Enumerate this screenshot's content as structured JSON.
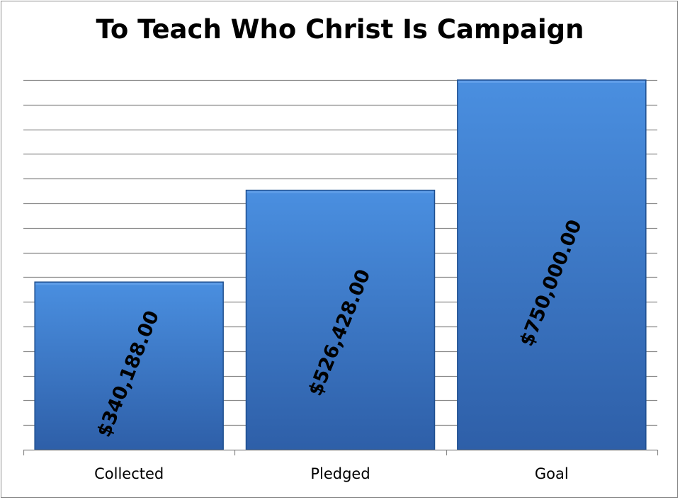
{
  "chart_data": {
    "type": "bar",
    "title": "To Teach Who Christ Is Campaign",
    "categories": [
      "Collected",
      "Pledged",
      "Goal"
    ],
    "values": [
      340188,
      526428,
      750000
    ],
    "data_labels": [
      "$340,188.00",
      "$526,428.00",
      "$750,000.00"
    ],
    "xlabel": "",
    "ylabel": "",
    "ylim": [
      0,
      750000
    ],
    "grid": true,
    "legend": "none",
    "colors": {
      "bar_top": "#4a8fe0",
      "bar_bottom": "#2e5fa8",
      "bar_edge": "#1f4f8f",
      "grid": "#8a8a8a",
      "axis": "#8a8a8a",
      "label": "#000000"
    }
  }
}
